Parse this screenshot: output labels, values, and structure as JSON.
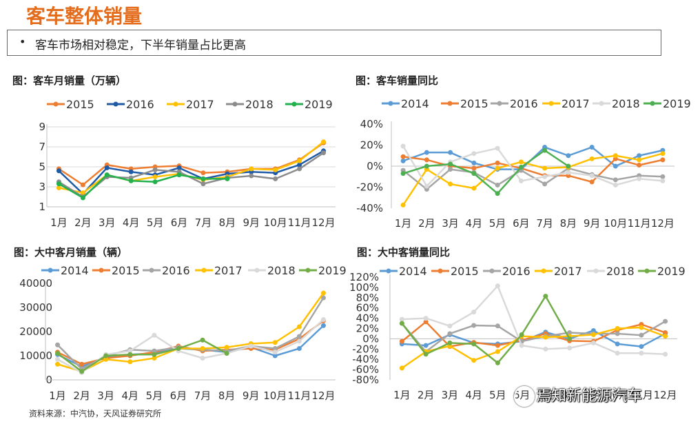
{
  "header": {
    "title": "客车整体销量",
    "bullet": "•",
    "subtitle": "客车市场相对稳定，下半年销量占比更高"
  },
  "source": "资料来源：中汽协，天风证券研究所",
  "watermark": "焉知新能源汽车",
  "chart_data": [
    {
      "title": "图：客车月销量（万辆）",
      "type": "line",
      "categories": [
        "1月",
        "2月",
        "3月",
        "4月",
        "5月",
        "6月",
        "7月",
        "8月",
        "9月",
        "10月",
        "11月",
        "12月"
      ],
      "yticks": [
        "1",
        "3",
        "5",
        "7",
        "9"
      ],
      "ylim": [
        1,
        9
      ],
      "series": [
        {
          "name": "2015",
          "color": "#ed7d31",
          "values": [
            4.8,
            3.2,
            5.2,
            4.8,
            5.0,
            5.1,
            4.4,
            4.5,
            4.8,
            4.8,
            5.7,
            7.4
          ]
        },
        {
          "name": "2016",
          "color": "#1f5aa6",
          "values": [
            4.6,
            2.3,
            4.9,
            4.5,
            4.2,
            4.9,
            3.8,
            4.3,
            4.5,
            4.4,
            5.2,
            6.6
          ]
        },
        {
          "name": "2017",
          "color": "#ffc000",
          "values": [
            2.9,
            2.4,
            4.2,
            3.6,
            4.0,
            4.3,
            3.7,
            4.0,
            4.8,
            4.7,
            5.6,
            7.5
          ]
        },
        {
          "name": "2018",
          "color": "#8c8c8c",
          "values": [
            3.5,
            2.0,
            4.0,
            3.9,
            4.7,
            4.5,
            3.3,
            3.9,
            4.1,
            3.8,
            4.8,
            6.4
          ]
        },
        {
          "name": "2019",
          "color": "#22b14c",
          "values": [
            3.3,
            1.9,
            4.2,
            3.6,
            3.5,
            4.2,
            3.8,
            3.8,
            null,
            null,
            null,
            null
          ]
        }
      ]
    },
    {
      "title": "图：客车销量同比",
      "type": "line",
      "categories": [
        "1月",
        "2月",
        "3月",
        "4月",
        "5月",
        "6月",
        "7月",
        "8月",
        "9月",
        "10月",
        "11月",
        "12月"
      ],
      "yticks": [
        "-40%",
        "-20%",
        "0%",
        "20%",
        "40%"
      ],
      "ylim": [
        -40,
        40
      ],
      "series": [
        {
          "name": "2014",
          "color": "#5b9bd5",
          "values": [
            5,
            13,
            13,
            3,
            -3,
            -3,
            18,
            10,
            18,
            0,
            10,
            15
          ]
        },
        {
          "name": "2015",
          "color": "#ed7d31",
          "values": [
            9,
            6,
            0,
            -2,
            3,
            -2,
            -9,
            -9,
            -15,
            7,
            1,
            6
          ]
        },
        {
          "name": "2016",
          "color": "#a5a5a5",
          "values": [
            -4,
            -22,
            -3,
            -6,
            -18,
            -4,
            -17,
            -2,
            -8,
            -13,
            -9,
            -10
          ]
        },
        {
          "name": "2017",
          "color": "#ffc000",
          "values": [
            -37,
            -3,
            -17,
            -21,
            -2,
            4,
            -2,
            -1,
            7,
            10,
            6,
            12
          ]
        },
        {
          "name": "2018",
          "color": "#d9d9d9",
          "values": [
            19,
            -19,
            4,
            12,
            17,
            -14,
            -10,
            -6,
            -9,
            -18,
            -12,
            -14
          ]
        },
        {
          "name": "2019",
          "color": "#4caf50",
          "values": [
            -7,
            0,
            2,
            -7,
            -26,
            -1,
            15,
            0,
            null,
            null,
            null,
            null
          ]
        }
      ]
    },
    {
      "title": "图：大中客月销量（辆）",
      "type": "line",
      "categories": [
        "1月",
        "2月",
        "3月",
        "4月",
        "5月",
        "6月",
        "7月",
        "8月",
        "9月",
        "10月",
        "11月",
        "12月"
      ],
      "yticks": [
        "0",
        "10000",
        "20000",
        "30000",
        "40000"
      ],
      "ylim": [
        0,
        40000
      ],
      "series": [
        {
          "name": "2014",
          "color": "#5b9bd5",
          "values": [
            10500,
            5500,
            9500,
            10500,
            11000,
            13000,
            12500,
            11500,
            13500,
            10000,
            13000,
            22500
          ]
        },
        {
          "name": "2015",
          "color": "#ed7d31",
          "values": [
            11500,
            6500,
            9000,
            10000,
            11500,
            14000,
            12000,
            12500,
            13000,
            12500,
            17000,
            24500
          ]
        },
        {
          "name": "2016",
          "color": "#a5a5a5",
          "values": [
            14500,
            4500,
            10000,
            12500,
            12000,
            13500,
            12500,
            12000,
            14000,
            13000,
            18000,
            34000
          ]
        },
        {
          "name": "2017",
          "color": "#ffc000",
          "values": [
            6500,
            3500,
            8500,
            7500,
            9000,
            13000,
            13000,
            13500,
            15000,
            15500,
            22000,
            36000
          ]
        },
        {
          "name": "2018",
          "color": "#d9d9d9",
          "values": [
            8500,
            3000,
            10500,
            12000,
            18500,
            12000,
            9000,
            11000,
            14000,
            11500,
            16000,
            25000
          ]
        },
        {
          "name": "2019",
          "color": "#70ad47",
          "values": [
            11000,
            3500,
            10000,
            10500,
            10500,
            13000,
            16500,
            11000,
            null,
            null,
            null,
            null
          ]
        }
      ]
    },
    {
      "title": "图：大中客销量同比",
      "type": "line",
      "categories": [
        "1月",
        "2月",
        "3月",
        "4月",
        "5月",
        "6月",
        "7月",
        "8月",
        "9月",
        "10月",
        "11月",
        "12月"
      ],
      "yticks": [
        "-80%",
        "-60%",
        "-40%",
        "-20%",
        "0%",
        "20%",
        "40%",
        "60%",
        "80%",
        "100%",
        "120%"
      ],
      "ylim": [
        -80,
        120
      ],
      "series": [
        {
          "name": "2014",
          "color": "#5b9bd5",
          "values": [
            -10,
            -13,
            8,
            -8,
            -10,
            -5,
            13,
            0,
            16,
            -10,
            -15,
            10
          ]
        },
        {
          "name": "2015",
          "color": "#ed7d31",
          "values": [
            -5,
            33,
            -15,
            -7,
            -13,
            -3,
            10,
            -4,
            -5,
            17,
            28,
            12
          ]
        },
        {
          "name": "2016",
          "color": "#a5a5a5",
          "values": [
            30,
            -25,
            10,
            26,
            25,
            -5,
            5,
            12,
            10,
            10,
            7,
            34
          ]
        },
        {
          "name": "2017",
          "color": "#ffc000",
          "values": [
            -57,
            -25,
            -14,
            -42,
            -25,
            5,
            3,
            5,
            8,
            20,
            22,
            5
          ]
        },
        {
          "name": "2018",
          "color": "#d9d9d9",
          "values": [
            38,
            40,
            25,
            52,
            103,
            -13,
            -20,
            -18,
            -8,
            -28,
            -28,
            -30
          ]
        },
        {
          "name": "2019",
          "color": "#70ad47",
          "values": [
            30,
            -30,
            -8,
            -10,
            -47,
            8,
            83,
            0,
            null,
            null,
            null,
            null
          ]
        }
      ]
    }
  ]
}
